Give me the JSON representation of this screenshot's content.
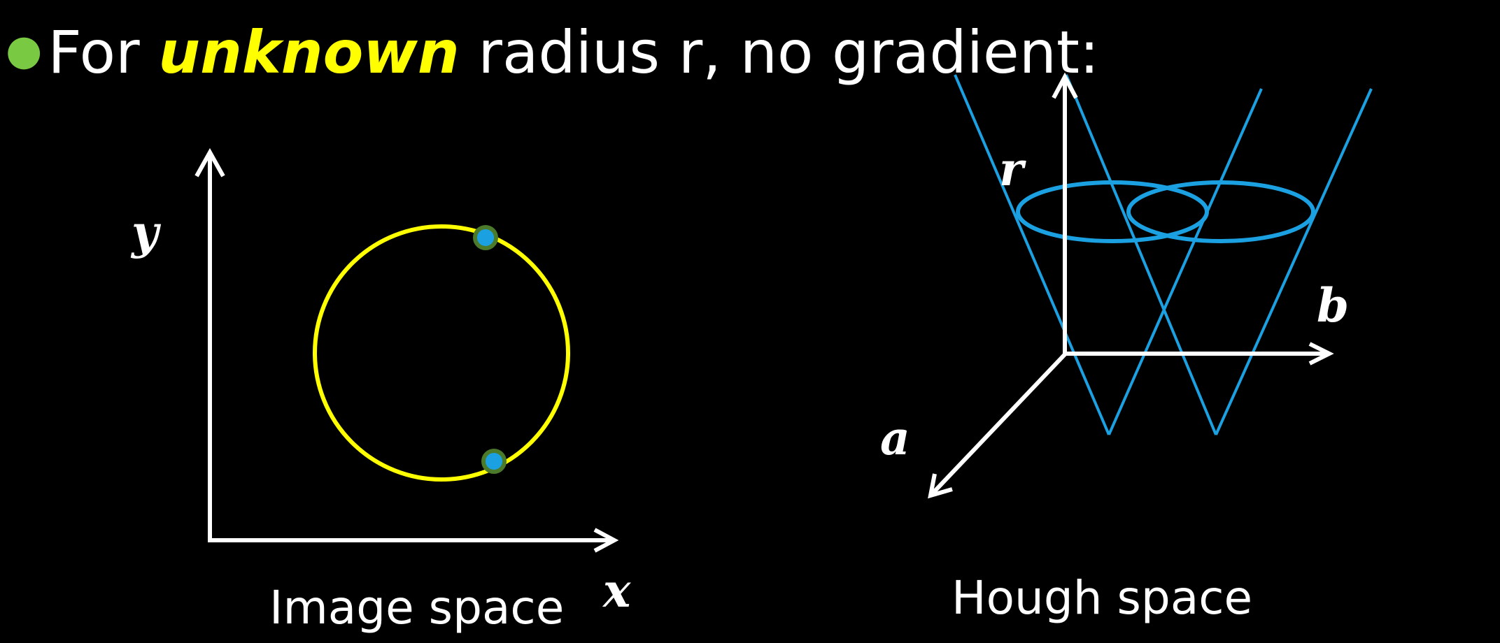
{
  "bullet": {
    "prefix": "For ",
    "emphasis": "unknown",
    "suffix": " radius r, no gradient:"
  },
  "image_space": {
    "x_label": "x",
    "y_label": "y",
    "caption": "Image space"
  },
  "hough_space": {
    "a_label": "a",
    "b_label": "b",
    "r_label": "r",
    "caption": "Hough space"
  },
  "colors": {
    "background": "#000000",
    "circle": "#ffff00",
    "point_fill": "#1ba1e2",
    "point_ring": "#4a7a2a",
    "cone": "#1ba1e2",
    "axes": "#ffffff",
    "bullet": "#7ac943",
    "emphasis": "#ffff00"
  }
}
